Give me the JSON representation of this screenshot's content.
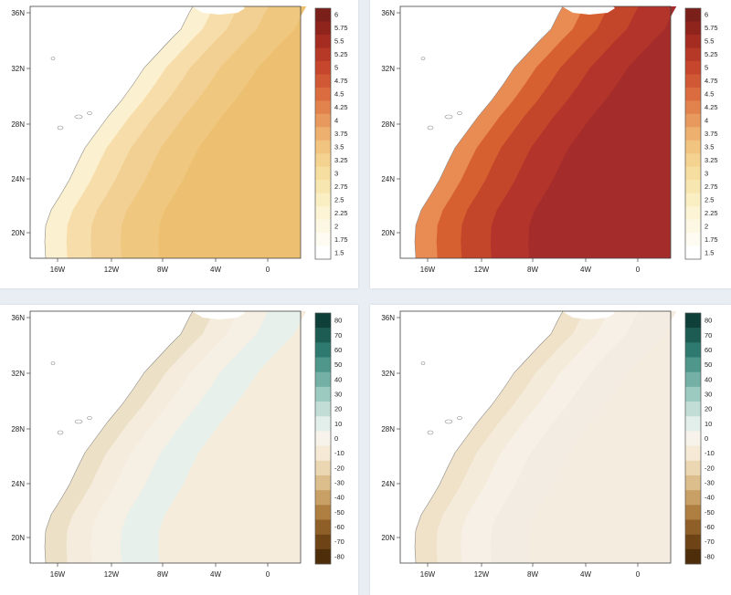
{
  "panels": [
    {
      "id": "p1",
      "palette": "seq_low",
      "lat_ticks": [
        "36N",
        "32N",
        "28N",
        "24N",
        "20N"
      ],
      "lon_ticks": [
        "16W",
        "12W",
        "8W",
        "4W",
        "0"
      ]
    },
    {
      "id": "p2",
      "palette": "seq_high",
      "lat_ticks": [
        "36N",
        "32N",
        "28N",
        "24N",
        "20N"
      ],
      "lon_ticks": [
        "16W",
        "12W",
        "8W",
        "4W",
        "0"
      ]
    },
    {
      "id": "p3",
      "palette": "div_mild",
      "lat_ticks": [
        "36N",
        "32N",
        "28N",
        "24N",
        "20N"
      ],
      "lon_ticks": [
        "16W",
        "12W",
        "8W",
        "4W",
        "0"
      ]
    },
    {
      "id": "p4",
      "palette": "div_strong",
      "lat_ticks": [
        "36N",
        "32N",
        "28N",
        "24N",
        "20N"
      ],
      "lon_ticks": [
        "16W",
        "12W",
        "8W",
        "4W",
        "0"
      ]
    }
  ],
  "colorbars": {
    "seq": {
      "labels": [
        "6",
        "5.75",
        "5.5",
        "5.25",
        "5",
        "4.75",
        "4.5",
        "4.25",
        "4",
        "3.75",
        "3.5",
        "3.25",
        "3",
        "2.75",
        "2.5",
        "2.25",
        "2",
        "1.75",
        "1.5"
      ],
      "colors": [
        "#7a1f1a",
        "#8f241d",
        "#a42c21",
        "#b63826",
        "#c5462c",
        "#d15834",
        "#da6c3f",
        "#e2824d",
        "#e89a5e",
        "#edb06f",
        "#f1c47f",
        "#f4d28f",
        "#f6dda0",
        "#f8e6b1",
        "#faeec3",
        "#fcf4d4",
        "#fdf8e4",
        "#fefcf2",
        "#ffffff"
      ]
    },
    "div": {
      "labels": [
        "80",
        "70",
        "60",
        "50",
        "40",
        "30",
        "20",
        "10",
        "0",
        "-10",
        "-20",
        "-30",
        "-40",
        "-50",
        "-60",
        "-70",
        "-80"
      ],
      "colors": [
        "#0e3f38",
        "#1d5c53",
        "#2f7a70",
        "#4f968b",
        "#74b0a5",
        "#9ccac0",
        "#c1ddd6",
        "#e2efeb",
        "#f7f3ea",
        "#f6ead6",
        "#ecd7b3",
        "#dcbe8c",
        "#c89f64",
        "#af7f42",
        "#8f5f28",
        "#6e4417",
        "#4e2d0b"
      ]
    }
  }
}
